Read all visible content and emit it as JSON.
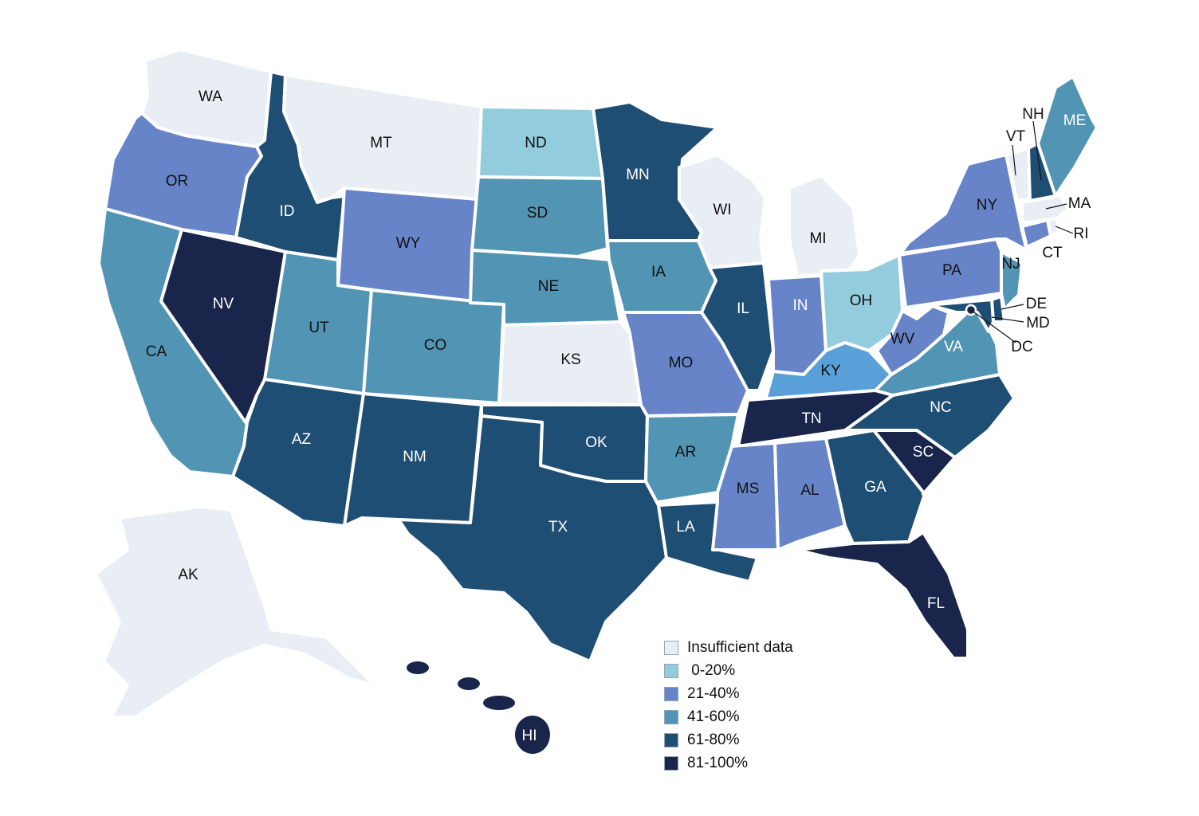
{
  "legend": {
    "items": [
      {
        "key": "insufficient",
        "label": "Insufficient data",
        "color": "#e9eef5"
      },
      {
        "key": "b0_20",
        "label": " 0-20%",
        "color": "#93cddd"
      },
      {
        "key": "b21_40",
        "label": "21-40%",
        "color": "#6784c9"
      },
      {
        "key": "b41_60",
        "label": "41-60%",
        "color": "#5294b3"
      },
      {
        "key": "b61_80",
        "label": "61-80%",
        "color": "#1f4e74"
      },
      {
        "key": "b81_100",
        "label": "81-100%",
        "color": "#19254a"
      }
    ]
  },
  "states": [
    {
      "abbr": "WA",
      "category": "insufficient"
    },
    {
      "abbr": "OR",
      "category": "b21_40"
    },
    {
      "abbr": "CA",
      "category": "b41_60"
    },
    {
      "abbr": "NV",
      "category": "b81_100"
    },
    {
      "abbr": "ID",
      "category": "b61_80"
    },
    {
      "abbr": "MT",
      "category": "insufficient"
    },
    {
      "abbr": "WY",
      "category": "b21_40"
    },
    {
      "abbr": "UT",
      "category": "b41_60"
    },
    {
      "abbr": "AZ",
      "category": "b61_80"
    },
    {
      "abbr": "CO",
      "category": "b41_60"
    },
    {
      "abbr": "NM",
      "category": "b61_80"
    },
    {
      "abbr": "ND",
      "category": "b0_20"
    },
    {
      "abbr": "SD",
      "category": "b41_60"
    },
    {
      "abbr": "NE",
      "category": "b41_60"
    },
    {
      "abbr": "KS",
      "category": "insufficient"
    },
    {
      "abbr": "OK",
      "category": "b61_80"
    },
    {
      "abbr": "TX",
      "category": "b61_80"
    },
    {
      "abbr": "MN",
      "category": "b61_80"
    },
    {
      "abbr": "IA",
      "category": "b41_60"
    },
    {
      "abbr": "MO",
      "category": "b21_40"
    },
    {
      "abbr": "AR",
      "category": "b41_60"
    },
    {
      "abbr": "LA",
      "category": "b61_80"
    },
    {
      "abbr": "WI",
      "category": "insufficient"
    },
    {
      "abbr": "IL",
      "category": "b61_80"
    },
    {
      "abbr": "MI",
      "category": "insufficient"
    },
    {
      "abbr": "IN",
      "category": "b21_40"
    },
    {
      "abbr": "OH",
      "category": "b0_20"
    },
    {
      "abbr": "KY",
      "category": "kycol"
    },
    {
      "abbr": "TN",
      "category": "b81_100"
    },
    {
      "abbr": "MS",
      "category": "b21_40"
    },
    {
      "abbr": "AL",
      "category": "b21_40"
    },
    {
      "abbr": "GA",
      "category": "b61_80"
    },
    {
      "abbr": "FL",
      "category": "b81_100"
    },
    {
      "abbr": "SC",
      "category": "b81_100"
    },
    {
      "abbr": "NC",
      "category": "b61_80"
    },
    {
      "abbr": "VA",
      "category": "b41_60"
    },
    {
      "abbr": "WV",
      "category": "b21_40"
    },
    {
      "abbr": "PA",
      "category": "b21_40"
    },
    {
      "abbr": "NY",
      "category": "b21_40"
    },
    {
      "abbr": "NJ",
      "category": "b41_60"
    },
    {
      "abbr": "DE",
      "category": "b61_80"
    },
    {
      "abbr": "MD",
      "category": "b61_80"
    },
    {
      "abbr": "DC",
      "category": "b81_100"
    },
    {
      "abbr": "CT",
      "category": "b21_40"
    },
    {
      "abbr": "RI",
      "category": "insufficient"
    },
    {
      "abbr": "MA",
      "category": "insufficient"
    },
    {
      "abbr": "VT",
      "category": "insufficient"
    },
    {
      "abbr": "NH",
      "category": "b61_80"
    },
    {
      "abbr": "ME",
      "category": "b41_60"
    },
    {
      "abbr": "AK",
      "category": "insufficient"
    },
    {
      "abbr": "HI",
      "category": "b81_100"
    }
  ],
  "colors": {
    "kycol": "#5aa0d8",
    "border": "#ffffff"
  }
}
